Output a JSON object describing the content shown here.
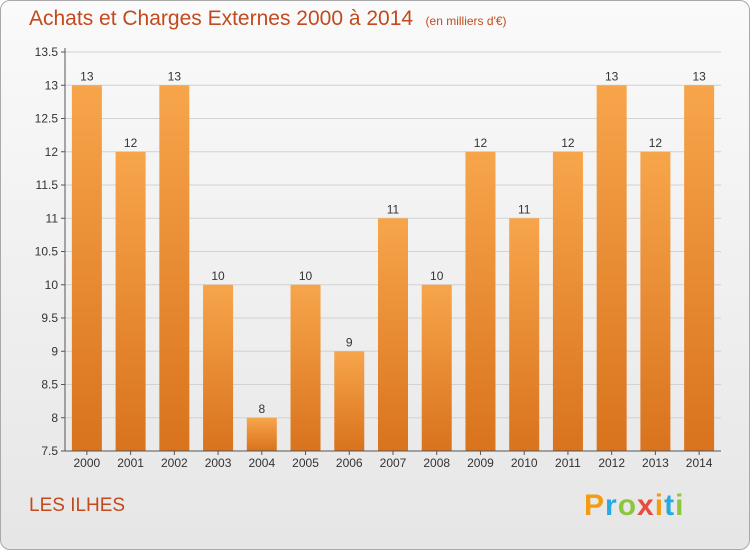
{
  "header": {
    "title": "Achats et Charges Externes 2000 à 2014",
    "subtitle": "(en milliers d'€)"
  },
  "footer": {
    "location": "LES ILHES",
    "brand": "Proxiti",
    "brand_colors": [
      "#f39c12",
      "#27a9e1",
      "#8cc63f",
      "#e74c3c",
      "#f39c12",
      "#27a9e1",
      "#8cc63f"
    ]
  },
  "chart_data": {
    "type": "bar",
    "title": "Achats et Charges Externes 2000 à 2014",
    "subtitle": "(en milliers d'€)",
    "xlabel": "",
    "ylabel": "",
    "categories": [
      "2000",
      "2001",
      "2002",
      "2003",
      "2004",
      "2005",
      "2006",
      "2007",
      "2008",
      "2009",
      "2010",
      "2011",
      "2012",
      "2013",
      "2014"
    ],
    "values": [
      13,
      12,
      13,
      10,
      8,
      10,
      9,
      11,
      10,
      12,
      11,
      12,
      13,
      12,
      13
    ],
    "ylim": [
      7.5,
      13.5
    ],
    "yticks": [
      "7.5",
      "8",
      "8.5",
      "9",
      "9.5",
      "10",
      "10.5",
      "11",
      "11.5",
      "12",
      "12.5",
      "13",
      "13.5"
    ],
    "grid": true,
    "bar_color_top": "#f7a54b",
    "bar_color_bottom": "#d9731d"
  }
}
